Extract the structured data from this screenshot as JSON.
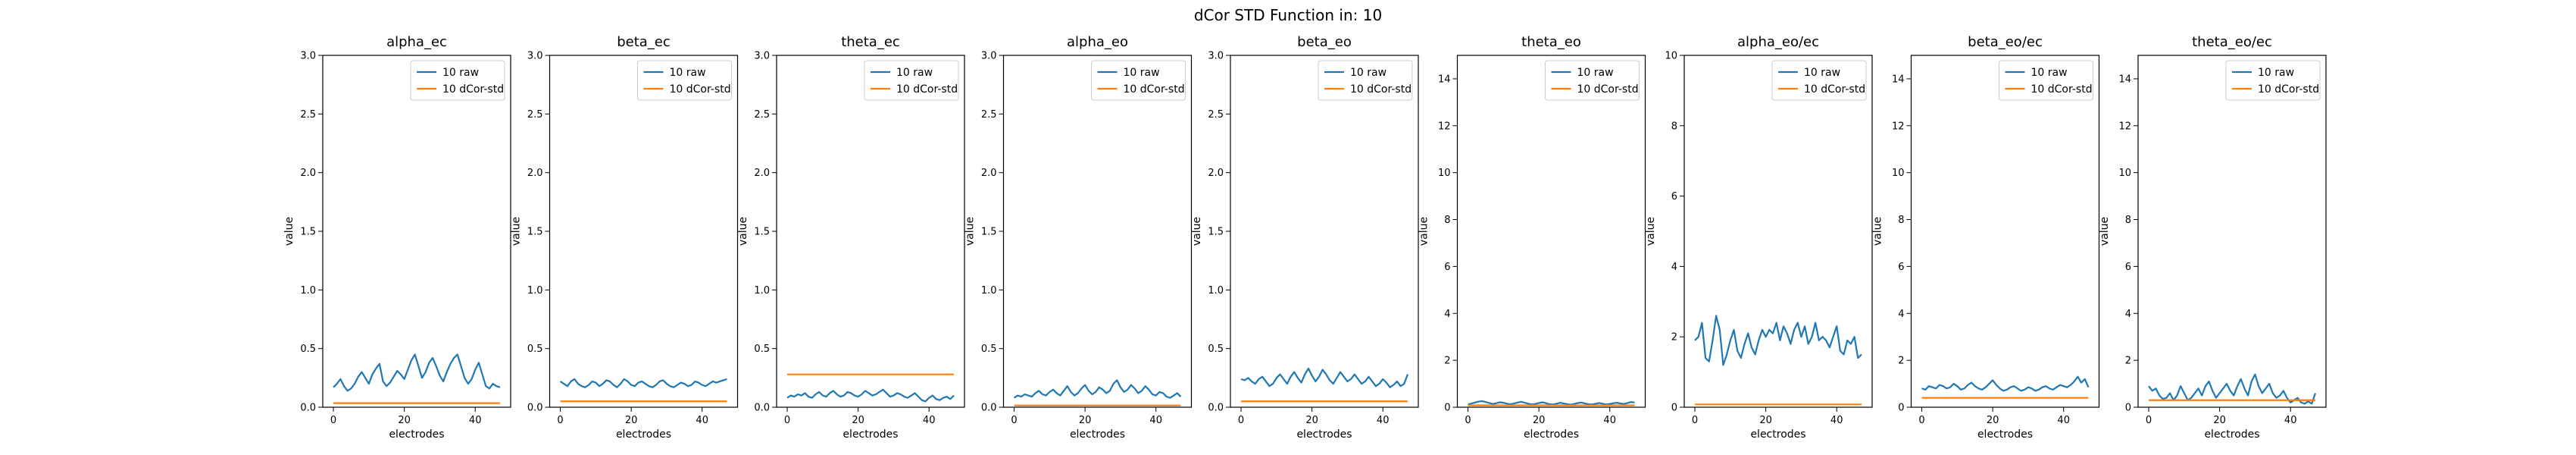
{
  "figure": {
    "title": "dCor STD Function in: 10"
  },
  "colors": {
    "raw": "#1f77b4",
    "std": "#ff7f0e"
  },
  "chart_data": [
    {
      "type": "line",
      "title": "alpha_ec",
      "xlabel": "electrodes",
      "ylabel": "value",
      "xlim": [
        -3,
        50
      ],
      "ylim": [
        0,
        3.0
      ],
      "xticks": [
        0,
        20,
        40
      ],
      "yticks": [
        0.0,
        0.5,
        1.0,
        1.5,
        2.0,
        2.5,
        3.0
      ],
      "ytick_labels": [
        "0.0",
        "0.5",
        "1.0",
        "1.5",
        "2.0",
        "2.5",
        "3.0"
      ],
      "legend": "top-right",
      "series": [
        {
          "name": "10 raw",
          "values": [
            0.17,
            0.2,
            0.24,
            0.18,
            0.14,
            0.16,
            0.2,
            0.26,
            0.3,
            0.25,
            0.2,
            0.28,
            0.33,
            0.37,
            0.22,
            0.18,
            0.21,
            0.26,
            0.31,
            0.28,
            0.24,
            0.32,
            0.4,
            0.45,
            0.35,
            0.25,
            0.3,
            0.38,
            0.42,
            0.35,
            0.27,
            0.22,
            0.3,
            0.37,
            0.42,
            0.45,
            0.35,
            0.25,
            0.2,
            0.24,
            0.32,
            0.38,
            0.28,
            0.18,
            0.16,
            0.2,
            0.18,
            0.17
          ]
        },
        {
          "name": "10 dCor-std",
          "values": [
            0.035,
            0.035
          ]
        }
      ]
    },
    {
      "type": "line",
      "title": "beta_ec",
      "xlabel": "electrodes",
      "ylabel": "value",
      "xlim": [
        -3,
        50
      ],
      "ylim": [
        0,
        3.0
      ],
      "xticks": [
        0,
        20,
        40
      ],
      "yticks": [
        0.0,
        0.5,
        1.0,
        1.5,
        2.0,
        2.5,
        3.0
      ],
      "ytick_labels": [
        "0.0",
        "0.5",
        "1.0",
        "1.5",
        "2.0",
        "2.5",
        "3.0"
      ],
      "legend": "top-right",
      "series": [
        {
          "name": "10 raw",
          "values": [
            0.22,
            0.2,
            0.18,
            0.22,
            0.24,
            0.2,
            0.18,
            0.17,
            0.19,
            0.22,
            0.21,
            0.18,
            0.2,
            0.23,
            0.22,
            0.19,
            0.17,
            0.2,
            0.24,
            0.22,
            0.19,
            0.18,
            0.21,
            0.22,
            0.2,
            0.18,
            0.17,
            0.19,
            0.22,
            0.23,
            0.2,
            0.18,
            0.17,
            0.19,
            0.21,
            0.2,
            0.18,
            0.19,
            0.22,
            0.21,
            0.19,
            0.18,
            0.2,
            0.22,
            0.21,
            0.22,
            0.23,
            0.24
          ]
        },
        {
          "name": "10 dCor-std",
          "values": [
            0.05,
            0.05
          ]
        }
      ]
    },
    {
      "type": "line",
      "title": "theta_ec",
      "xlabel": "electrodes",
      "ylabel": "value",
      "xlim": [
        -3,
        50
      ],
      "ylim": [
        0,
        3.0
      ],
      "xticks": [
        0,
        20,
        40
      ],
      "yticks": [
        0.0,
        0.5,
        1.0,
        1.5,
        2.0,
        2.5,
        3.0
      ],
      "ytick_labels": [
        "0.0",
        "0.5",
        "1.0",
        "1.5",
        "2.0",
        "2.5",
        "3.0"
      ],
      "legend": "top-right",
      "series": [
        {
          "name": "10 raw",
          "values": [
            0.08,
            0.1,
            0.09,
            0.11,
            0.1,
            0.12,
            0.09,
            0.08,
            0.11,
            0.13,
            0.1,
            0.09,
            0.12,
            0.14,
            0.11,
            0.09,
            0.1,
            0.13,
            0.12,
            0.1,
            0.09,
            0.11,
            0.14,
            0.12,
            0.1,
            0.11,
            0.13,
            0.15,
            0.12,
            0.09,
            0.1,
            0.12,
            0.11,
            0.09,
            0.08,
            0.1,
            0.12,
            0.09,
            0.06,
            0.05,
            0.08,
            0.1,
            0.07,
            0.06,
            0.08,
            0.09,
            0.07,
            0.1
          ]
        },
        {
          "name": "10 dCor-std",
          "values": [
            0.28,
            0.28
          ]
        }
      ]
    },
    {
      "type": "line",
      "title": "alpha_eo",
      "xlabel": "electrodes",
      "ylabel": "value",
      "xlim": [
        -3,
        50
      ],
      "ylim": [
        0,
        3.0
      ],
      "xticks": [
        0,
        20,
        40
      ],
      "yticks": [
        0.0,
        0.5,
        1.0,
        1.5,
        2.0,
        2.5,
        3.0
      ],
      "ytick_labels": [
        "0.0",
        "0.5",
        "1.0",
        "1.5",
        "2.0",
        "2.5",
        "3.0"
      ],
      "legend": "top-right",
      "series": [
        {
          "name": "10 raw",
          "values": [
            0.08,
            0.1,
            0.09,
            0.11,
            0.1,
            0.09,
            0.12,
            0.14,
            0.11,
            0.1,
            0.13,
            0.15,
            0.12,
            0.1,
            0.14,
            0.18,
            0.13,
            0.1,
            0.12,
            0.16,
            0.19,
            0.14,
            0.11,
            0.13,
            0.17,
            0.15,
            0.12,
            0.14,
            0.2,
            0.23,
            0.17,
            0.13,
            0.15,
            0.19,
            0.16,
            0.12,
            0.14,
            0.18,
            0.15,
            0.11,
            0.1,
            0.13,
            0.12,
            0.09,
            0.08,
            0.1,
            0.12,
            0.09
          ]
        },
        {
          "name": "10 dCor-std",
          "values": [
            0.015,
            0.015
          ]
        }
      ]
    },
    {
      "type": "line",
      "title": "beta_eo",
      "xlabel": "electrodes",
      "ylabel": "value",
      "xlim": [
        -3,
        50
      ],
      "ylim": [
        0,
        3.0
      ],
      "xticks": [
        0,
        20,
        40
      ],
      "yticks": [
        0.0,
        0.5,
        1.0,
        1.5,
        2.0,
        2.5,
        3.0
      ],
      "ytick_labels": [
        "0.0",
        "0.5",
        "1.0",
        "1.5",
        "2.0",
        "2.5",
        "3.0"
      ],
      "legend": "top-right",
      "series": [
        {
          "name": "10 raw",
          "values": [
            0.24,
            0.23,
            0.25,
            0.22,
            0.2,
            0.24,
            0.26,
            0.22,
            0.18,
            0.2,
            0.25,
            0.28,
            0.24,
            0.2,
            0.26,
            0.3,
            0.25,
            0.21,
            0.28,
            0.33,
            0.27,
            0.22,
            0.26,
            0.32,
            0.28,
            0.23,
            0.2,
            0.25,
            0.3,
            0.26,
            0.22,
            0.24,
            0.28,
            0.24,
            0.2,
            0.22,
            0.26,
            0.22,
            0.18,
            0.2,
            0.24,
            0.21,
            0.17,
            0.19,
            0.22,
            0.18,
            0.2,
            0.28
          ]
        },
        {
          "name": "10 dCor-std",
          "values": [
            0.05,
            0.05
          ]
        }
      ]
    },
    {
      "type": "line",
      "title": "theta_eo",
      "xlabel": "electrodes",
      "ylabel": "value",
      "xlim": [
        -3,
        50
      ],
      "ylim": [
        0,
        15
      ],
      "xticks": [
        0,
        20,
        40
      ],
      "yticks": [
        0,
        2,
        4,
        6,
        8,
        10,
        12,
        14
      ],
      "ytick_labels": [
        "0",
        "2",
        "4",
        "6",
        "8",
        "10",
        "12",
        "14"
      ],
      "legend": "top-right",
      "series": [
        {
          "name": "10 raw",
          "values": [
            0.12,
            0.16,
            0.2,
            0.24,
            0.26,
            0.22,
            0.18,
            0.14,
            0.17,
            0.21,
            0.19,
            0.15,
            0.13,
            0.16,
            0.2,
            0.23,
            0.19,
            0.15,
            0.12,
            0.14,
            0.18,
            0.21,
            0.17,
            0.13,
            0.12,
            0.15,
            0.19,
            0.16,
            0.13,
            0.11,
            0.14,
            0.18,
            0.2,
            0.16,
            0.13,
            0.12,
            0.15,
            0.18,
            0.15,
            0.12,
            0.14,
            0.17,
            0.19,
            0.16,
            0.14,
            0.18,
            0.22,
            0.2
          ]
        },
        {
          "name": "10 dCor-std",
          "values": [
            0.08,
            0.08
          ]
        }
      ]
    },
    {
      "type": "line",
      "title": "alpha_eo/ec",
      "xlabel": "electrodes",
      "ylabel": "value",
      "xlim": [
        -3,
        50
      ],
      "ylim": [
        0,
        10
      ],
      "xticks": [
        0,
        20,
        40
      ],
      "yticks": [
        0,
        2,
        4,
        6,
        8,
        10
      ],
      "ytick_labels": [
        "0",
        "2",
        "4",
        "6",
        "8",
        "10"
      ],
      "legend": "top-right",
      "series": [
        {
          "name": "10 raw",
          "values": [
            1.9,
            2.0,
            2.4,
            1.4,
            1.3,
            1.9,
            2.6,
            2.2,
            1.2,
            1.5,
            1.9,
            2.2,
            1.6,
            1.4,
            1.8,
            2.1,
            1.7,
            1.5,
            1.9,
            2.2,
            2.0,
            2.2,
            2.1,
            2.4,
            1.9,
            2.3,
            2.1,
            1.8,
            2.2,
            2.4,
            2.0,
            2.3,
            1.8,
            2.0,
            2.4,
            1.9,
            2.0,
            1.9,
            1.7,
            2.0,
            2.3,
            1.6,
            1.5,
            1.9,
            1.8,
            2.0,
            1.4,
            1.5
          ]
        },
        {
          "name": "10 dCor-std",
          "values": [
            0.08,
            0.08
          ]
        }
      ]
    },
    {
      "type": "line",
      "title": "beta_eo/ec",
      "xlabel": "electrodes",
      "ylabel": "value",
      "xlim": [
        -3,
        50
      ],
      "ylim": [
        0,
        15
      ],
      "xticks": [
        0,
        20,
        40
      ],
      "yticks": [
        0,
        2,
        4,
        6,
        8,
        10,
        12,
        14
      ],
      "ytick_labels": [
        "0",
        "2",
        "4",
        "6",
        "8",
        "10",
        "12",
        "14"
      ],
      "legend": "top-right",
      "series": [
        {
          "name": "10 raw",
          "values": [
            0.8,
            0.75,
            0.9,
            0.85,
            0.8,
            0.95,
            0.9,
            0.8,
            0.85,
            1.0,
            0.9,
            0.75,
            0.8,
            0.95,
            1.05,
            0.9,
            0.8,
            0.75,
            0.85,
            1.0,
            1.15,
            0.95,
            0.8,
            0.7,
            0.75,
            0.85,
            0.9,
            0.8,
            0.7,
            0.75,
            0.85,
            0.8,
            0.7,
            0.75,
            0.85,
            0.9,
            0.8,
            0.75,
            0.85,
            0.95,
            0.9,
            0.85,
            0.95,
            1.1,
            1.3,
            1.05,
            1.2,
            0.85
          ]
        },
        {
          "name": "10 dCor-std",
          "values": [
            0.4,
            0.4
          ]
        }
      ]
    },
    {
      "type": "line",
      "title": "theta_eo/ec",
      "xlabel": "electrodes",
      "ylabel": "value",
      "xlim": [
        -3,
        50
      ],
      "ylim": [
        0,
        15
      ],
      "xticks": [
        0,
        20,
        40
      ],
      "yticks": [
        0,
        2,
        4,
        6,
        8,
        10,
        12,
        14
      ],
      "ytick_labels": [
        "0",
        "2",
        "4",
        "6",
        "8",
        "10",
        "12",
        "14"
      ],
      "legend": "top-right",
      "series": [
        {
          "name": "10 raw",
          "values": [
            0.9,
            0.7,
            0.8,
            0.5,
            0.35,
            0.4,
            0.6,
            0.3,
            0.5,
            0.9,
            0.6,
            0.3,
            0.4,
            0.6,
            0.8,
            0.5,
            0.9,
            1.1,
            0.7,
            0.4,
            0.6,
            0.8,
            1.0,
            0.7,
            0.5,
            0.9,
            1.2,
            0.8,
            0.5,
            1.1,
            1.4,
            0.9,
            0.6,
            0.8,
            1.0,
            0.6,
            0.4,
            0.5,
            0.7,
            0.4,
            0.2,
            0.3,
            0.4,
            0.2,
            0.15,
            0.25,
            0.15,
            0.6
          ]
        },
        {
          "name": "10 dCor-std",
          "values": [
            0.3,
            0.3
          ]
        }
      ]
    }
  ]
}
